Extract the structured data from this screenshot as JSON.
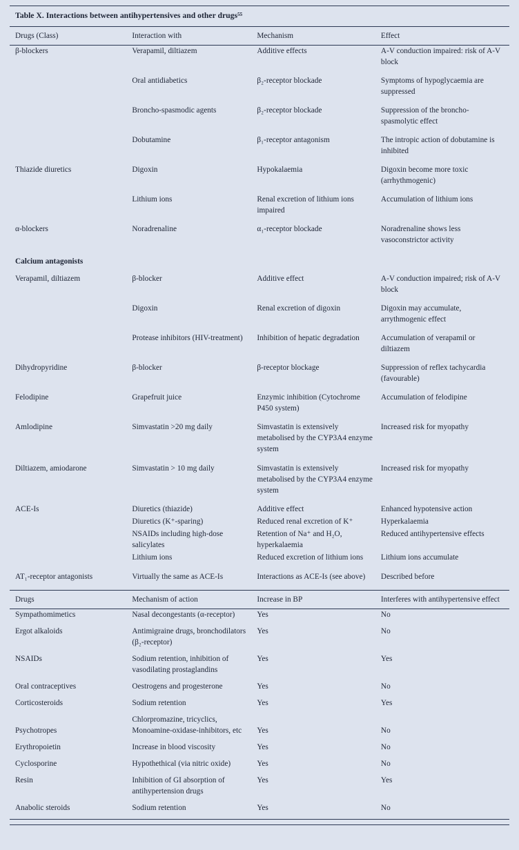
{
  "page": {
    "bg": "#dde3ee",
    "text_color": "#1e2536",
    "rule_color": "#2b3752"
  },
  "table1": {
    "title": "Table X. Interactions between antihypertensives and other drugs⁵⁵",
    "columns": [
      "Drugs (Class)",
      "Interaction with",
      "Mechanism",
      "Effect"
    ],
    "rows": [
      {
        "drug": "β-blockers",
        "interaction": "Verapamil, diltiazem",
        "mechanism": "Additive effects",
        "effect": "A-V conduction impaired: risk of A-V block"
      },
      {
        "drug": "",
        "interaction": "Oral antidiabetics",
        "mechanism": "β₂-receptor blockade",
        "effect": "Symptoms of hypoglycaemia are suppressed"
      },
      {
        "drug": "",
        "interaction": "Broncho-spasmodic agents",
        "mechanism": "β₂-receptor blockade",
        "effect": "Suppression of the broncho-spasmolytic effect"
      },
      {
        "drug": "",
        "interaction": "Dobutamine",
        "mechanism": "β₁-receptor antagonism",
        "effect": "The intropic action of dobutamine is inhibited"
      },
      {
        "drug": "Thiazide diuretics",
        "interaction": "Digoxin",
        "mechanism": "Hypokalaemia",
        "effect": "Digoxin become more toxic (arrhythmogenic)"
      },
      {
        "drug": "",
        "interaction": "Lithium ions",
        "mechanism": "Renal excretion of lithium ions impaired",
        "effect": "Accumulation of lithium ions"
      },
      {
        "drug": "α-blockers",
        "interaction": "Noradrenaline",
        "mechanism": "α₁-receptor blockade",
        "effect": "Noradrenaline shows less vasoconstrictor activity"
      },
      {
        "drug": "Calcium antagonists",
        "interaction": "",
        "mechanism": "",
        "effect": "",
        "cls": "section"
      },
      {
        "drug": "Verapamil, diltiazem",
        "interaction": "β-blocker",
        "mechanism": "Additive effect",
        "effect": "A-V conduction impaired; risk of A-V block"
      },
      {
        "drug": "",
        "interaction": "Digoxin",
        "mechanism": "Renal excretion of digoxin",
        "effect": "Digoxin may accumulate, arrythmogenic effect"
      },
      {
        "drug": "",
        "interaction": "Protease inhibitors (HIV-treatment)",
        "mechanism": "Inhibition of hepatic degradation",
        "effect": "Accumulation of verapamil or diltiazem"
      },
      {
        "drug": "Dihydropyridine",
        "interaction": "β-blocker",
        "mechanism": "β-receptor blockage",
        "effect": "Suppression of reflex tachycardia (favourable)"
      },
      {
        "drug": "Felodipine",
        "interaction": "Grapefruit juice",
        "mechanism": "Enzymic inhibition (Cytochrome P450 system)",
        "effect": "Accumulation of felodipine"
      },
      {
        "drug": "Amlodipine",
        "interaction": "Simvastatin >20 mg daily",
        "mechanism": "Simvastatin is extensively metabolised by the CYP3A4 enzyme system",
        "effect": "Increased risk for myopathy"
      },
      {
        "drug": "Diltiazem, amiodarone",
        "interaction": "Simvastatin > 10 mg daily",
        "mechanism": "Simvastatin is extensively metabolised by the CYP3A4 enzyme system",
        "effect": "Increased risk for myopathy"
      },
      {
        "drug": "ACE-Is",
        "interaction": "Diuretics (thiazide)",
        "mechanism": "Additive effect",
        "effect": "Enhanced hypotensive action",
        "cls": "tight"
      },
      {
        "drug": "",
        "interaction": "Diuretics (K⁺-sparing)",
        "mechanism": "Reduced renal excretion of K⁺",
        "effect": "Hyperkalaemia",
        "cls": "tight"
      },
      {
        "drug": "",
        "interaction": "NSAIDs including high-dose salicylates",
        "mechanism": "Retention of Na⁺ and H₂O, hyperkalaemia",
        "effect": "Reduced antihypertensive effects",
        "cls": "tight"
      },
      {
        "drug": "",
        "interaction": "Lithium ions",
        "mechanism": "Reduced excretion of lithium ions",
        "effect": "Lithium ions accumulate",
        "cls": "tight"
      },
      {
        "drug": "AT₁-receptor antagonists",
        "interaction": "Virtually the same as ACE-Is",
        "mechanism": "Interactions as ACE-Is (see above)",
        "effect": "Described before",
        "cls": "spaced"
      }
    ]
  },
  "table2": {
    "columns": [
      "Drugs",
      "Mechanism of action",
      "Increase in BP",
      "Interferes with antihypertensive effect"
    ],
    "rows": [
      {
        "drug": "Sympathomimetics",
        "mechanism": "Nasal decongestants (α-receptor)",
        "bp": "Yes",
        "interferes": "No"
      },
      {
        "drug": "Ergot alkaloids",
        "mechanism": "Antimigraine drugs, bronchodilators (β₂-receptor)",
        "bp": "Yes",
        "interferes": "No"
      },
      {
        "drug": "NSAIDs",
        "mechanism": "Sodium retention, inhibition of vasodilating prostaglandins",
        "bp": "Yes",
        "interferes": "Yes"
      },
      {
        "drug": "Oral contraceptives",
        "mechanism": "Oestrogens and progesterone",
        "bp": "Yes",
        "interferes": "No"
      },
      {
        "drug": "Corticosteroids",
        "mechanism": "Sodium retention",
        "bp": "Yes",
        "interferes": "Yes"
      },
      {
        "drug": "Psychotropes",
        "mechanism": "Chlorpromazine, tricyclics, Monoamine-oxidase-inhibitors, etc",
        "bp": "Yes",
        "interferes": "No",
        "cls": "bottom"
      },
      {
        "drug": "Erythropoietin",
        "mechanism": "Increase in blood viscosity",
        "bp": "Yes",
        "interferes": "No"
      },
      {
        "drug": "Cyclosporine",
        "mechanism": "Hypothethical (via nitric oxide)",
        "bp": "Yes",
        "interferes": "No"
      },
      {
        "drug": "Resin",
        "mechanism": "Inhibition of GI absorption of antihypertension drugs",
        "bp": "Yes",
        "interferes": "Yes"
      },
      {
        "drug": "Anabolic steroids",
        "mechanism": "Sodium retention",
        "bp": "Yes",
        "interferes": "No"
      }
    ]
  }
}
